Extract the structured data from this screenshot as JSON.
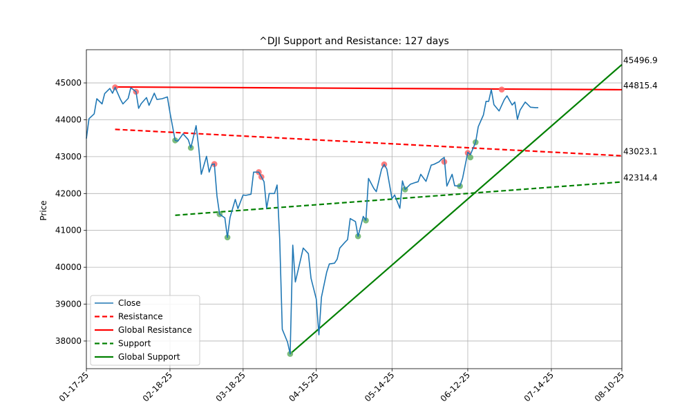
{
  "chart_data": {
    "type": "line",
    "title": "^DJI Support and Resistance: 127 days",
    "xlabel": "",
    "ylabel": "Price",
    "x_ticks": [
      "01-17-25",
      "02-18-25",
      "03-18-25",
      "04-15-25",
      "05-14-25",
      "06-12-25",
      "07-14-25",
      "08-10-25"
    ],
    "x_tick_days": [
      0,
      32,
      60,
      88,
      117,
      146,
      178,
      205
    ],
    "x_range_days": [
      0,
      205
    ],
    "y_ticks": [
      38000,
      39000,
      40000,
      41000,
      42000,
      43000,
      44000,
      45000
    ],
    "ylim": [
      37250,
      45900
    ],
    "grid": true,
    "legend_position": "lower-left",
    "legend": [
      "Close",
      "Resistance",
      "Global Resistance",
      "Support",
      "Global Support"
    ],
    "colors": {
      "close": "#1f77b4",
      "resistance": "#ff0000",
      "support": "#008000",
      "resistance_marker": "#ff6666",
      "support_marker": "#66b266",
      "grid": "#b0b0b0"
    },
    "close_series": {
      "name": "Close",
      "points": [
        [
          0,
          43490
        ],
        [
          1,
          44030
        ],
        [
          3,
          44160
        ],
        [
          4,
          44570
        ],
        [
          6,
          44430
        ],
        [
          7,
          44710
        ],
        [
          9,
          44850
        ],
        [
          10,
          44720
        ],
        [
          11,
          44880
        ],
        [
          13,
          44560
        ],
        [
          14,
          44430
        ],
        [
          16,
          44580
        ],
        [
          17,
          44870
        ],
        [
          19,
          44760
        ],
        [
          20,
          44310
        ],
        [
          21,
          44440
        ],
        [
          23,
          44600
        ],
        [
          24,
          44390
        ],
        [
          26,
          44720
        ],
        [
          27,
          44550
        ],
        [
          29,
          44570
        ],
        [
          31,
          44620
        ],
        [
          32,
          44190
        ],
        [
          34,
          43440
        ],
        [
          35,
          43420
        ],
        [
          37,
          43620
        ],
        [
          39,
          43460
        ],
        [
          40,
          43240
        ],
        [
          42,
          43840
        ],
        [
          43,
          43240
        ],
        [
          44,
          42520
        ],
        [
          46,
          43010
        ],
        [
          47,
          42580
        ],
        [
          48,
          42790
        ],
        [
          49,
          42800
        ],
        [
          50,
          41930
        ],
        [
          51,
          41440
        ],
        [
          53,
          41340
        ],
        [
          54,
          40810
        ],
        [
          55,
          41350
        ],
        [
          57,
          41840
        ],
        [
          58,
          41590
        ],
        [
          60,
          41960
        ],
        [
          61,
          41950
        ],
        [
          63,
          41980
        ],
        [
          64,
          42580
        ],
        [
          66,
          42580
        ],
        [
          67,
          42450
        ],
        [
          68,
          42320
        ],
        [
          69,
          41600
        ],
        [
          70,
          42000
        ],
        [
          72,
          42000
        ],
        [
          73,
          42230
        ],
        [
          74,
          40750
        ],
        [
          75,
          38320
        ],
        [
          77,
          37970
        ],
        [
          78,
          37650
        ],
        [
          79,
          40600
        ],
        [
          80,
          39600
        ],
        [
          82,
          40210
        ],
        [
          83,
          40520
        ],
        [
          85,
          40370
        ],
        [
          86,
          39700
        ],
        [
          88,
          39140
        ],
        [
          89,
          38170
        ],
        [
          90,
          39190
        ],
        [
          92,
          39870
        ],
        [
          93,
          40090
        ],
        [
          95,
          40110
        ],
        [
          96,
          40220
        ],
        [
          97,
          40520
        ],
        [
          99,
          40680
        ],
        [
          100,
          40750
        ],
        [
          101,
          41320
        ],
        [
          103,
          41240
        ],
        [
          104,
          40840
        ],
        [
          105,
          41110
        ],
        [
          106,
          41380
        ],
        [
          107,
          41270
        ],
        [
          108,
          42410
        ],
        [
          110,
          42140
        ],
        [
          111,
          42050
        ],
        [
          113,
          42660
        ],
        [
          114,
          42790
        ],
        [
          115,
          42660
        ],
        [
          117,
          41860
        ],
        [
          118,
          41960
        ],
        [
          120,
          41600
        ],
        [
          121,
          42340
        ],
        [
          122,
          42110
        ],
        [
          124,
          42250
        ],
        [
          126,
          42300
        ],
        [
          127,
          42320
        ],
        [
          128,
          42520
        ],
        [
          130,
          42330
        ],
        [
          132,
          42770
        ],
        [
          133,
          42790
        ],
        [
          135,
          42860
        ],
        [
          136,
          42930
        ],
        [
          137,
          42980
        ],
        [
          138,
          42200
        ],
        [
          140,
          42520
        ],
        [
          141,
          42210
        ],
        [
          143,
          42200
        ],
        [
          144,
          42410
        ],
        [
          146,
          43120
        ],
        [
          147,
          43050
        ],
        [
          149,
          43390
        ],
        [
          150,
          43810
        ],
        [
          152,
          44130
        ],
        [
          153,
          44500
        ],
        [
          154,
          44500
        ],
        [
          155,
          44820
        ],
        [
          156,
          44410
        ],
        [
          158,
          44240
        ],
        [
          160,
          44550
        ],
        [
          161,
          44650
        ],
        [
          163,
          44400
        ],
        [
          164,
          44480
        ],
        [
          165,
          44010
        ],
        [
          166,
          44260
        ],
        [
          168,
          44480
        ],
        [
          170,
          44340
        ],
        [
          172,
          44330
        ],
        [
          173,
          44330
        ]
      ]
    },
    "resistance_points": [
      [
        11,
        44880
      ],
      [
        19,
        44760
      ],
      [
        49,
        42800
      ],
      [
        66,
        42580
      ],
      [
        67,
        42450
      ],
      [
        114,
        42790
      ],
      [
        137,
        42860
      ],
      [
        146,
        43100
      ],
      [
        159,
        44820
      ]
    ],
    "support_points": [
      [
        34,
        43440
      ],
      [
        40,
        43240
      ],
      [
        51,
        41440
      ],
      [
        54,
        40810
      ],
      [
        78,
        37650
      ],
      [
        104,
        40840
      ],
      [
        107,
        41270
      ],
      [
        122,
        42110
      ],
      [
        143,
        42200
      ],
      [
        147,
        42980
      ],
      [
        149,
        43390
      ]
    ],
    "lines": [
      {
        "name": "Resistance",
        "style": "dashed",
        "color": "#ff0000",
        "x": [
          11,
          205
        ],
        "y": [
          43740,
          43023.1
        ],
        "end_label": "43023.1"
      },
      {
        "name": "Global Resistance",
        "style": "solid",
        "color": "#ff0000",
        "x": [
          11,
          205
        ],
        "y": [
          44890,
          44815.4
        ],
        "end_label": "44815.4"
      },
      {
        "name": "Support",
        "style": "dashed",
        "color": "#008000",
        "x": [
          34,
          205
        ],
        "y": [
          41410,
          42314.4
        ],
        "end_label": "42314.4"
      },
      {
        "name": "Global Support",
        "style": "solid",
        "color": "#008000",
        "x": [
          78,
          205
        ],
        "y": [
          37650,
          45496.9
        ],
        "end_label": "45496.9"
      }
    ]
  }
}
